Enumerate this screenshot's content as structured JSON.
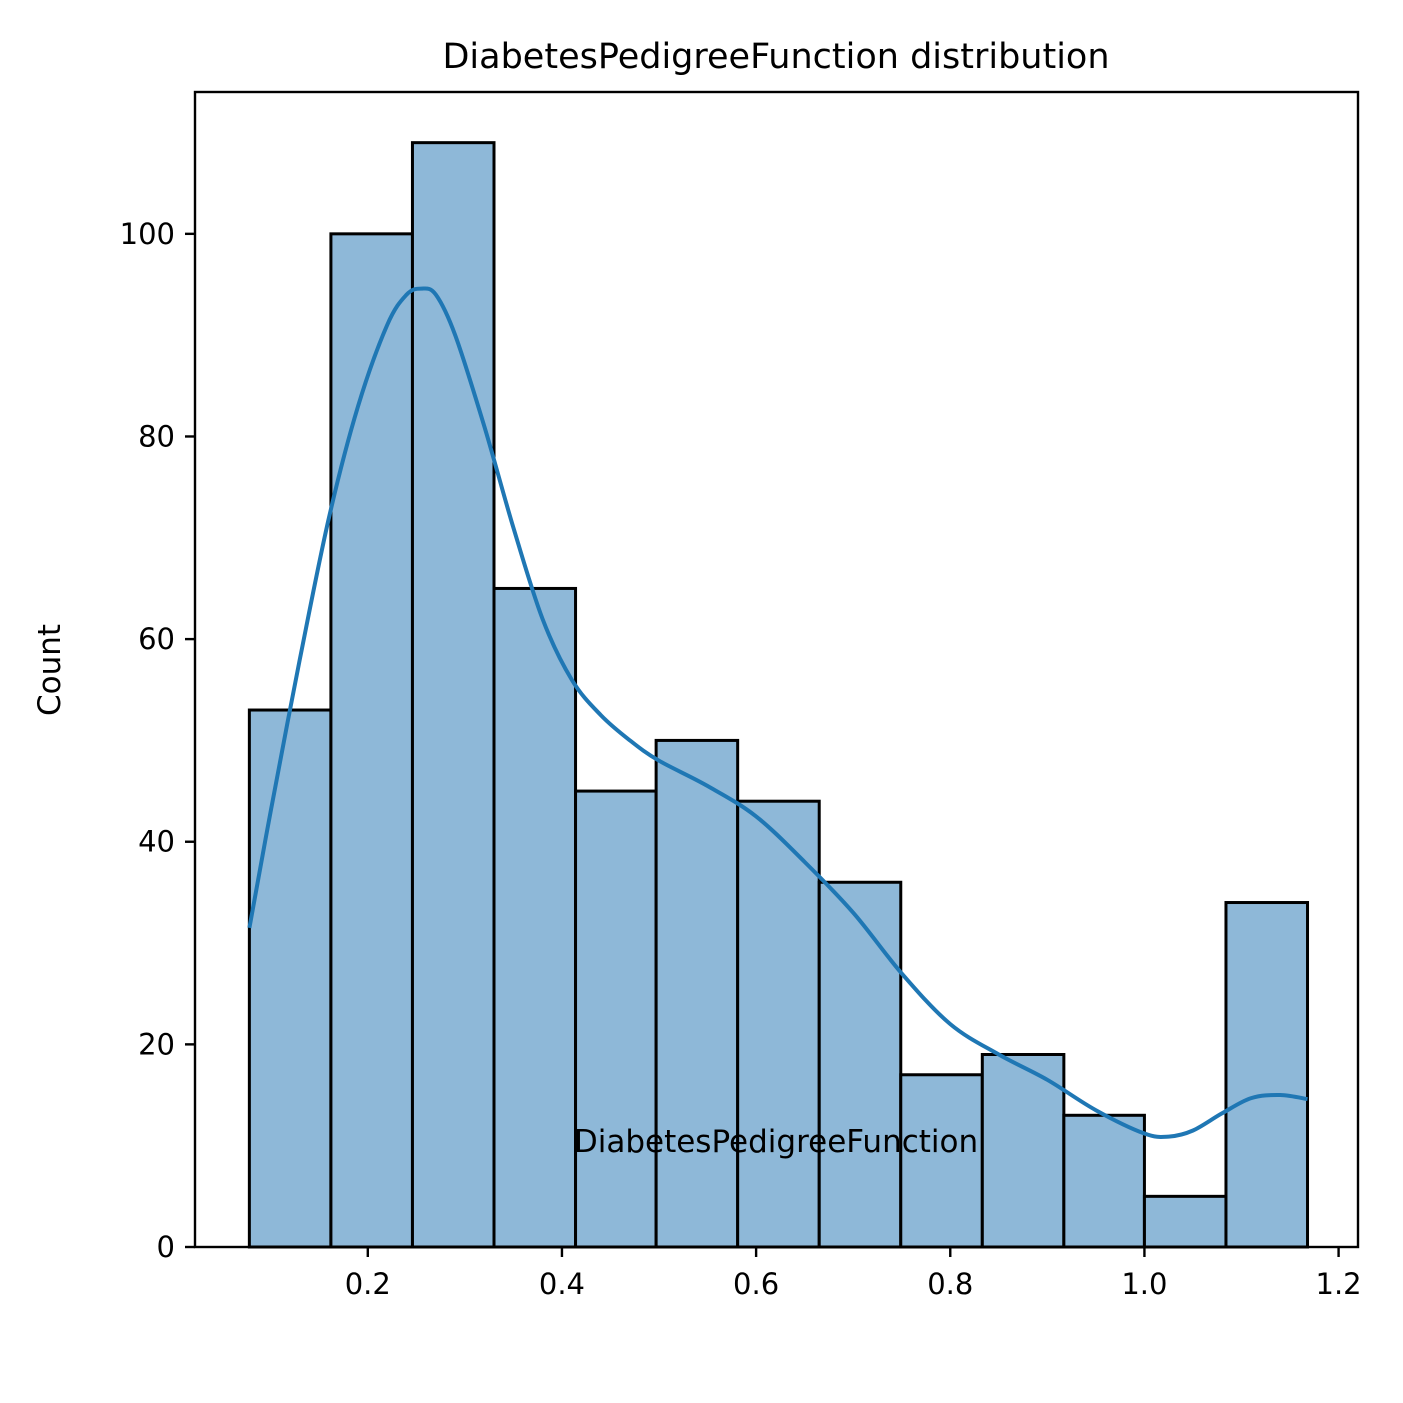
{
  "chart_data": {
    "type": "bar",
    "title": "DiabetesPedigreeFunction distribution",
    "xlabel": "DiabetesPedigreeFunction",
    "ylabel": "Count",
    "xlim": [
      0.022,
      1.22
    ],
    "ylim": [
      0,
      114
    ],
    "xticks": [
      0.2,
      0.4,
      0.6,
      0.8,
      1.0,
      1.2
    ],
    "xtick_labels": [
      "0.2",
      "0.4",
      "0.6",
      "0.8",
      "1.0",
      "1.2"
    ],
    "yticks": [
      0,
      20,
      40,
      60,
      80,
      100
    ],
    "ytick_labels": [
      "0",
      "20",
      "40",
      "60",
      "80",
      "100"
    ],
    "grid": false,
    "legend": "none",
    "bin_edges": [
      0.078,
      0.162,
      0.246,
      0.33,
      0.414,
      0.497,
      0.581,
      0.665,
      0.749,
      0.833,
      0.917,
      1.0,
      1.084,
      1.168
    ],
    "values": [
      53,
      100,
      109,
      65,
      45,
      50,
      44,
      36,
      17,
      19,
      13,
      5,
      34
    ],
    "kde": {
      "x": [
        0.078,
        0.1,
        0.13,
        0.16,
        0.19,
        0.22,
        0.24,
        0.255,
        0.27,
        0.29,
        0.32,
        0.35,
        0.38,
        0.41,
        0.44,
        0.47,
        0.5,
        0.55,
        0.6,
        0.65,
        0.7,
        0.75,
        0.8,
        0.85,
        0.9,
        0.95,
        1.0,
        1.025,
        1.05,
        1.08,
        1.11,
        1.14,
        1.168
      ],
      "y": [
        31.5,
        43,
        58,
        72,
        83,
        91,
        94,
        94.6,
        94,
        90,
        81,
        71,
        62,
        56,
        52.5,
        50,
        48,
        45.5,
        42.5,
        38,
        33,
        27,
        22,
        19,
        16.5,
        13.5,
        11.2,
        10.9,
        11.5,
        13.2,
        14.7,
        15.0,
        14.6
      ]
    },
    "colors": {
      "bar_fill": "#8eb8d8",
      "bar_edge": "#000000",
      "kde_line": "#1f77b4"
    }
  }
}
